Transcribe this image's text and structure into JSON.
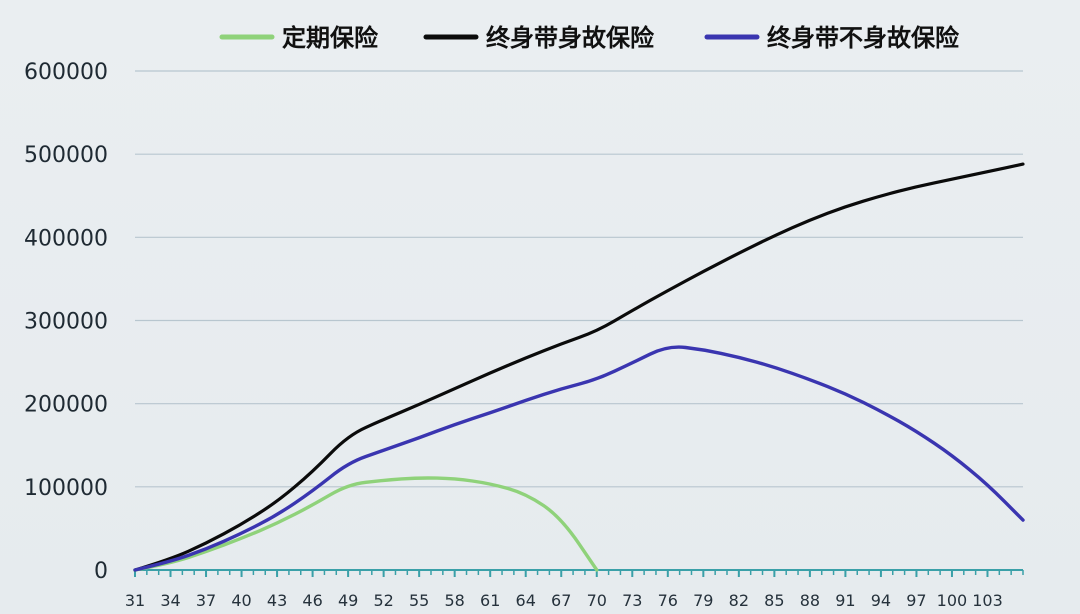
{
  "chart_data": {
    "type": "line",
    "title": "",
    "xlabel": "",
    "ylabel": "",
    "ylim": [
      0,
      600000
    ],
    "grid": true,
    "legend_placement": "top",
    "y_ticks": [
      0,
      100000,
      200000,
      300000,
      400000,
      500000,
      600000
    ],
    "x_ticks": [
      31,
      34,
      37,
      40,
      43,
      46,
      49,
      52,
      55,
      58,
      61,
      64,
      67,
      70,
      73,
      76,
      79,
      82,
      85,
      88,
      91,
      94,
      97,
      100,
      103
    ],
    "x_range": [
      31,
      106
    ],
    "series": [
      {
        "name": "定期保险",
        "color": "#8fd27a",
        "points": [
          [
            31,
            0
          ],
          [
            34,
            8000
          ],
          [
            37,
            22000
          ],
          [
            40,
            38000
          ],
          [
            43,
            56000
          ],
          [
            46,
            78000
          ],
          [
            49,
            103000
          ],
          [
            52,
            108000
          ],
          [
            55,
            111000
          ],
          [
            58,
            110000
          ],
          [
            61,
            104000
          ],
          [
            64,
            92000
          ],
          [
            67,
            63000
          ],
          [
            70,
            0
          ]
        ]
      },
      {
        "name": "终身带身故保险",
        "color": "#0b0b0b",
        "points": [
          [
            31,
            0
          ],
          [
            34,
            13000
          ],
          [
            37,
            32000
          ],
          [
            40,
            55000
          ],
          [
            43,
            82000
          ],
          [
            46,
            118000
          ],
          [
            49,
            162000
          ],
          [
            52,
            181000
          ],
          [
            55,
            199000
          ],
          [
            58,
            218000
          ],
          [
            61,
            237000
          ],
          [
            64,
            255000
          ],
          [
            67,
            272000
          ],
          [
            70,
            287000
          ],
          [
            73,
            312000
          ],
          [
            76,
            336000
          ],
          [
            79,
            359000
          ],
          [
            82,
            381000
          ],
          [
            85,
            402000
          ],
          [
            88,
            421000
          ],
          [
            91,
            437000
          ],
          [
            94,
            450000
          ],
          [
            97,
            461000
          ],
          [
            100,
            470000
          ],
          [
            103,
            479000
          ],
          [
            106,
            488000
          ]
        ]
      },
      {
        "name": "终身带不身故保险",
        "color": "#3a35b0",
        "points": [
          [
            31,
            0
          ],
          [
            34,
            10000
          ],
          [
            37,
            25000
          ],
          [
            40,
            44000
          ],
          [
            43,
            66000
          ],
          [
            46,
            95000
          ],
          [
            49,
            129000
          ],
          [
            52,
            144000
          ],
          [
            55,
            159000
          ],
          [
            58,
            175000
          ],
          [
            61,
            189000
          ],
          [
            64,
            204000
          ],
          [
            67,
            218000
          ],
          [
            70,
            229000
          ],
          [
            73,
            249000
          ],
          [
            76,
            270000
          ],
          [
            79,
            265000
          ],
          [
            82,
            256000
          ],
          [
            85,
            244000
          ],
          [
            88,
            229000
          ],
          [
            91,
            212000
          ],
          [
            94,
            191000
          ],
          [
            97,
            167000
          ],
          [
            100,
            138000
          ],
          [
            103,
            103000
          ],
          [
            106,
            60000
          ]
        ]
      }
    ]
  }
}
